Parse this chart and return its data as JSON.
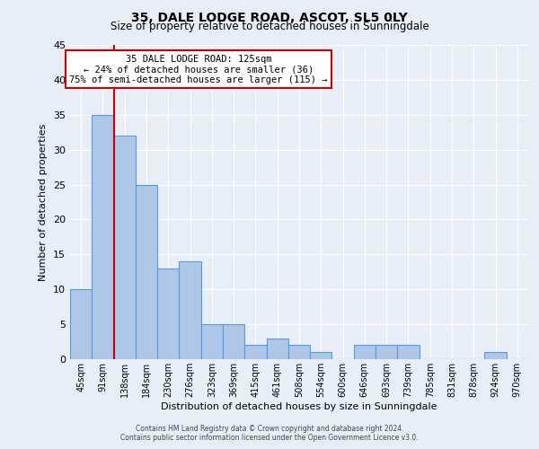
{
  "title": "35, DALE LODGE ROAD, ASCOT, SL5 0LY",
  "subtitle": "Size of property relative to detached houses in Sunningdale",
  "xlabel": "Distribution of detached houses by size in Sunningdale",
  "ylabel": "Number of detached properties",
  "bar_labels": [
    "45sqm",
    "91sqm",
    "138sqm",
    "184sqm",
    "230sqm",
    "276sqm",
    "323sqm",
    "369sqm",
    "415sqm",
    "461sqm",
    "508sqm",
    "554sqm",
    "600sqm",
    "646sqm",
    "693sqm",
    "739sqm",
    "785sqm",
    "831sqm",
    "878sqm",
    "924sqm",
    "970sqm"
  ],
  "bar_values": [
    10,
    35,
    32,
    25,
    13,
    14,
    5,
    5,
    2,
    3,
    2,
    1,
    0,
    2,
    2,
    2,
    0,
    0,
    0,
    1,
    0
  ],
  "bar_color": "#aec6e8",
  "bar_edge_color": "#5b9bd5",
  "ylim": [
    0,
    45
  ],
  "yticks": [
    0,
    5,
    10,
    15,
    20,
    25,
    30,
    35,
    40,
    45
  ],
  "property_line_color": "#cc0000",
  "annotation_box_text": "35 DALE LODGE ROAD: 125sqm\n← 24% of detached houses are smaller (36)\n75% of semi-detached houses are larger (115) →",
  "annotation_box_edge_color": "#cc0000",
  "annotation_box_face_color": "#ffffff",
  "bg_color": "#e8eef7",
  "plot_bg_color": "#e8eef7",
  "footer_line1": "Contains HM Land Registry data © Crown copyright and database right 2024.",
  "footer_line2": "Contains public sector information licensed under the Open Government Licence v3.0."
}
